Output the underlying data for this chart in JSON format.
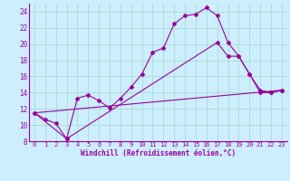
{
  "xlabel": "Windchill (Refroidissement éolien,°C)",
  "bg_color": "#cceeff",
  "line_color": "#990099",
  "xlim": [
    -0.5,
    23.5
  ],
  "ylim": [
    8,
    25
  ],
  "xticks": [
    0,
    1,
    2,
    3,
    4,
    5,
    6,
    7,
    8,
    9,
    10,
    11,
    12,
    13,
    14,
    15,
    16,
    17,
    18,
    19,
    20,
    21,
    22,
    23
  ],
  "yticks": [
    8,
    10,
    12,
    14,
    16,
    18,
    20,
    22,
    24
  ],
  "grid_color": "#aaddcc",
  "line1_x": [
    0,
    1,
    2,
    3,
    4,
    5,
    6,
    7,
    8,
    9,
    10,
    11,
    12,
    13,
    14,
    15,
    16,
    17,
    18,
    19,
    20,
    21,
    22,
    23
  ],
  "line1_y": [
    11.5,
    10.7,
    10.2,
    8.3,
    13.3,
    13.7,
    13.0,
    12.1,
    13.3,
    14.7,
    16.3,
    19.0,
    19.5,
    22.5,
    23.5,
    23.7,
    24.5,
    23.5,
    20.2,
    18.5,
    16.3,
    14.0,
    14.0,
    14.3
  ],
  "line2_x": [
    0,
    3,
    17,
    18,
    19,
    20,
    21,
    22,
    23
  ],
  "line2_y": [
    11.5,
    8.3,
    20.2,
    18.5,
    18.5,
    16.3,
    14.3,
    14.0,
    14.3
  ],
  "line3_x": [
    0,
    23
  ],
  "line3_y": [
    11.5,
    14.3
  ]
}
